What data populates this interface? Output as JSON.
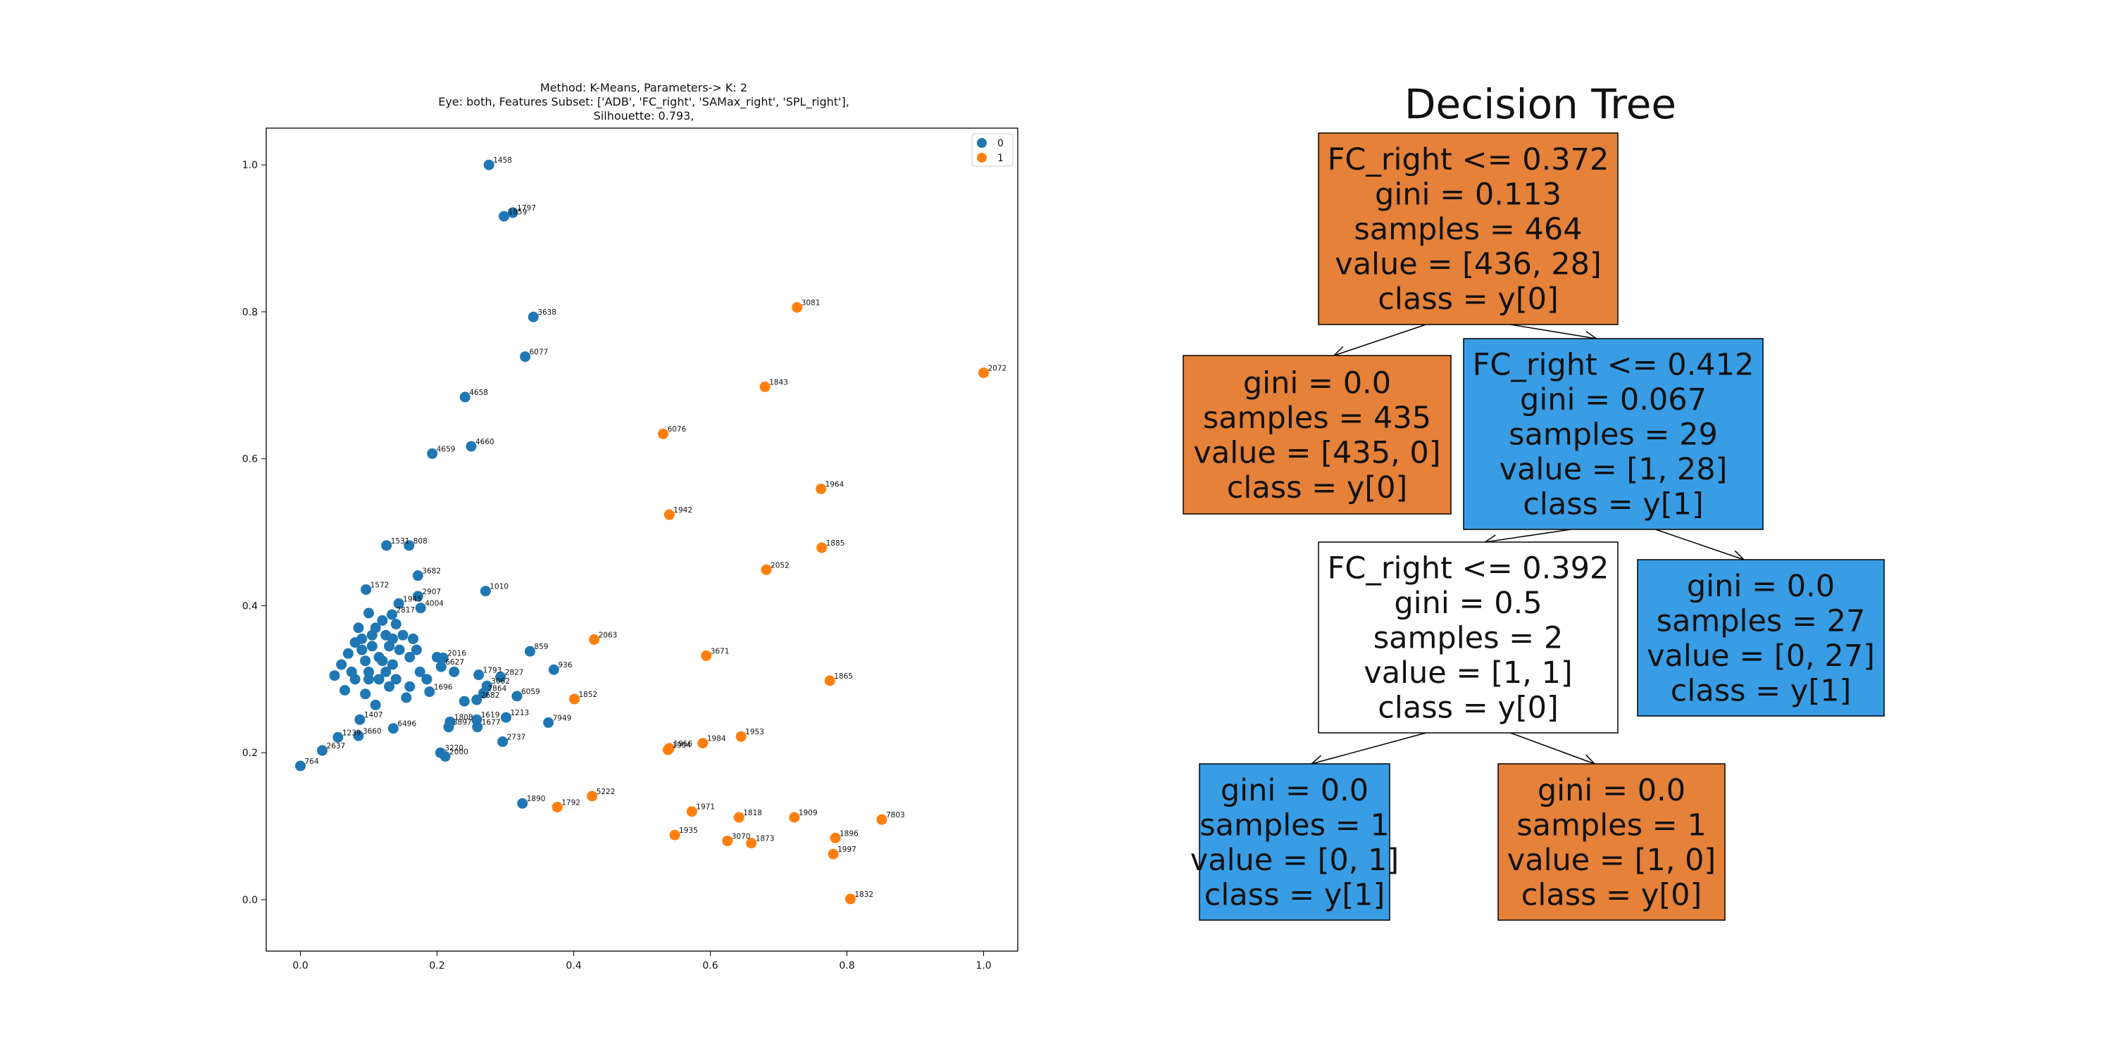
{
  "colors": {
    "cluster_0": "#1f77b4",
    "cluster_1": "#ff7f0e",
    "node_orange": "#e58139",
    "node_blue": "#399de5",
    "node_white": "#ffffff"
  },
  "chart_data": [
    {
      "type": "scatter",
      "title_lines": [
        "Method: K-Means, Parameters-> K: 2",
        "Eye: both, Features Subset: ['ADB', 'FC_right', 'SAMax_right', 'SPL_right'],",
        "Silhouette: 0.793,"
      ],
      "xlim": [
        -0.05,
        1.05
      ],
      "ylim": [
        -0.07,
        1.05
      ],
      "xticks": [
        "0.0",
        "0.2",
        "0.4",
        "0.6",
        "0.8",
        "1.0"
      ],
      "yticks": [
        "0.0",
        "0.2",
        "0.4",
        "0.6",
        "0.8",
        "1.0"
      ],
      "grid": false,
      "legend": {
        "position": "top-right",
        "entries": [
          "0",
          "1"
        ]
      },
      "series": [
        {
          "name": "0",
          "points": [
            {
              "x": 0.276,
              "y": 1.0,
              "label": "1458"
            },
            {
              "x": 0.311,
              "y": 0.935,
              "label": "1797"
            },
            {
              "x": 0.298,
              "y": 0.93,
              "label": "1859"
            },
            {
              "x": 0.341,
              "y": 0.793,
              "label": "3638"
            },
            {
              "x": 0.329,
              "y": 0.739,
              "label": "6077"
            },
            {
              "x": 0.241,
              "y": 0.684,
              "label": "4658"
            },
            {
              "x": 0.25,
              "y": 0.617,
              "label": "4660"
            },
            {
              "x": 0.193,
              "y": 0.607,
              "label": "4659"
            },
            {
              "x": 0.126,
              "y": 0.482,
              "label": "1531"
            },
            {
              "x": 0.159,
              "y": 0.482,
              "label": "808"
            },
            {
              "x": 0.172,
              "y": 0.441,
              "label": "3682"
            },
            {
              "x": 0.271,
              "y": 0.42,
              "label": "1010"
            },
            {
              "x": 0.096,
              "y": 0.422,
              "label": "1572"
            },
            {
              "x": 0.172,
              "y": 0.413,
              "label": "2907"
            },
            {
              "x": 0.176,
              "y": 0.397,
              "label": "4004"
            },
            {
              "x": 0.144,
              "y": 0.403,
              "label": "1945"
            },
            {
              "x": 0.134,
              "y": 0.388,
              "label": "2817"
            },
            {
              "x": 0.336,
              "y": 0.338,
              "label": "859"
            },
            {
              "x": 0.371,
              "y": 0.313,
              "label": "936"
            },
            {
              "x": 0.209,
              "y": 0.329,
              "label": "2016"
            },
            {
              "x": 0.206,
              "y": 0.317,
              "label": "6627"
            },
            {
              "x": 0.261,
              "y": 0.306,
              "label": "1793"
            },
            {
              "x": 0.293,
              "y": 0.303,
              "label": "2827"
            },
            {
              "x": 0.273,
              "y": 0.291,
              "label": "3062"
            },
            {
              "x": 0.268,
              "y": 0.281,
              "label": "2864"
            },
            {
              "x": 0.317,
              "y": 0.277,
              "label": "6059"
            },
            {
              "x": 0.258,
              "y": 0.272,
              "label": "2682"
            },
            {
              "x": 0.189,
              "y": 0.283,
              "label": "1696"
            },
            {
              "x": 0.301,
              "y": 0.248,
              "label": "1213"
            },
            {
              "x": 0.258,
              "y": 0.245,
              "label": "1619"
            },
            {
              "x": 0.259,
              "y": 0.235,
              "label": "1677"
            },
            {
              "x": 0.219,
              "y": 0.242,
              "label": "1808"
            },
            {
              "x": 0.217,
              "y": 0.235,
              "label": "3897"
            },
            {
              "x": 0.363,
              "y": 0.241,
              "label": "7949"
            },
            {
              "x": 0.087,
              "y": 0.245,
              "label": "1407"
            },
            {
              "x": 0.136,
              "y": 0.233,
              "label": "6496"
            },
            {
              "x": 0.085,
              "y": 0.223,
              "label": "3660"
            },
            {
              "x": 0.055,
              "y": 0.221,
              "label": "1239"
            },
            {
              "x": 0.296,
              "y": 0.215,
              "label": "2737"
            },
            {
              "x": 0.205,
              "y": 0.2,
              "label": "3220"
            },
            {
              "x": 0.212,
              "y": 0.195,
              "label": "2000"
            },
            {
              "x": 0.032,
              "y": 0.203,
              "label": "2637"
            },
            {
              "x": 0.0,
              "y": 0.182,
              "label": "764"
            },
            {
              "x": 0.325,
              "y": 0.131,
              "label": "1890"
            },
            {
              "x": 0.07,
              "y": 0.335,
              "label": ""
            },
            {
              "x": 0.09,
              "y": 0.355,
              "label": ""
            },
            {
              "x": 0.1,
              "y": 0.31,
              "label": ""
            },
            {
              "x": 0.11,
              "y": 0.37,
              "label": ""
            },
            {
              "x": 0.12,
              "y": 0.325,
              "label": ""
            },
            {
              "x": 0.13,
              "y": 0.345,
              "label": ""
            },
            {
              "x": 0.08,
              "y": 0.3,
              "label": ""
            },
            {
              "x": 0.14,
              "y": 0.3,
              "label": ""
            },
            {
              "x": 0.15,
              "y": 0.36,
              "label": ""
            },
            {
              "x": 0.16,
              "y": 0.33,
              "label": ""
            },
            {
              "x": 0.06,
              "y": 0.32,
              "label": ""
            },
            {
              "x": 0.095,
              "y": 0.28,
              "label": ""
            },
            {
              "x": 0.105,
              "y": 0.345,
              "label": ""
            },
            {
              "x": 0.115,
              "y": 0.3,
              "label": ""
            },
            {
              "x": 0.125,
              "y": 0.36,
              "label": ""
            },
            {
              "x": 0.135,
              "y": 0.32,
              "label": ""
            },
            {
              "x": 0.145,
              "y": 0.34,
              "label": ""
            },
            {
              "x": 0.085,
              "y": 0.37,
              "label": ""
            },
            {
              "x": 0.075,
              "y": 0.31,
              "label": ""
            },
            {
              "x": 0.165,
              "y": 0.355,
              "label": ""
            },
            {
              "x": 0.175,
              "y": 0.31,
              "label": ""
            },
            {
              "x": 0.185,
              "y": 0.3,
              "label": ""
            },
            {
              "x": 0.1,
              "y": 0.39,
              "label": ""
            },
            {
              "x": 0.12,
              "y": 0.38,
              "label": ""
            },
            {
              "x": 0.095,
              "y": 0.325,
              "label": ""
            },
            {
              "x": 0.13,
              "y": 0.29,
              "label": ""
            },
            {
              "x": 0.11,
              "y": 0.265,
              "label": ""
            },
            {
              "x": 0.155,
              "y": 0.275,
              "label": ""
            },
            {
              "x": 0.05,
              "y": 0.305,
              "label": ""
            },
            {
              "x": 0.14,
              "y": 0.375,
              "label": ""
            },
            {
              "x": 0.2,
              "y": 0.33,
              "label": ""
            },
            {
              "x": 0.225,
              "y": 0.31,
              "label": ""
            },
            {
              "x": 0.24,
              "y": 0.27,
              "label": ""
            },
            {
              "x": 0.065,
              "y": 0.285,
              "label": ""
            },
            {
              "x": 0.105,
              "y": 0.36,
              "label": ""
            },
            {
              "x": 0.16,
              "y": 0.29,
              "label": ""
            },
            {
              "x": 0.125,
              "y": 0.31,
              "label": ""
            },
            {
              "x": 0.09,
              "y": 0.34,
              "label": ""
            },
            {
              "x": 0.115,
              "y": 0.33,
              "label": ""
            },
            {
              "x": 0.135,
              "y": 0.355,
              "label": ""
            },
            {
              "x": 0.17,
              "y": 0.34,
              "label": ""
            },
            {
              "x": 0.1,
              "y": 0.3,
              "label": ""
            },
            {
              "x": 0.08,
              "y": 0.35,
              "label": ""
            }
          ]
        },
        {
          "name": "1",
          "points": [
            {
              "x": 0.727,
              "y": 0.806,
              "label": "3081"
            },
            {
              "x": 1.0,
              "y": 0.717,
              "label": "2072"
            },
            {
              "x": 0.68,
              "y": 0.698,
              "label": "1843"
            },
            {
              "x": 0.531,
              "y": 0.634,
              "label": "6076"
            },
            {
              "x": 0.762,
              "y": 0.559,
              "label": "1964"
            },
            {
              "x": 0.54,
              "y": 0.524,
              "label": "1942"
            },
            {
              "x": 0.763,
              "y": 0.479,
              "label": "1885"
            },
            {
              "x": 0.682,
              "y": 0.449,
              "label": "2052"
            },
            {
              "x": 0.43,
              "y": 0.354,
              "label": "2063"
            },
            {
              "x": 0.594,
              "y": 0.332,
              "label": "3671"
            },
            {
              "x": 0.775,
              "y": 0.298,
              "label": "1865"
            },
            {
              "x": 0.401,
              "y": 0.273,
              "label": "1852"
            },
            {
              "x": 0.645,
              "y": 0.222,
              "label": "1953"
            },
            {
              "x": 0.589,
              "y": 0.213,
              "label": "1984"
            },
            {
              "x": 0.54,
              "y": 0.206,
              "label": "1966"
            },
            {
              "x": 0.538,
              "y": 0.204,
              "label": "1904"
            },
            {
              "x": 0.427,
              "y": 0.141,
              "label": "5222"
            },
            {
              "x": 0.376,
              "y": 0.126,
              "label": "1792"
            },
            {
              "x": 0.573,
              "y": 0.12,
              "label": "1971"
            },
            {
              "x": 0.642,
              "y": 0.112,
              "label": "1818"
            },
            {
              "x": 0.723,
              "y": 0.112,
              "label": "1909"
            },
            {
              "x": 0.851,
              "y": 0.109,
              "label": "7803"
            },
            {
              "x": 0.548,
              "y": 0.088,
              "label": "1935"
            },
            {
              "x": 0.783,
              "y": 0.084,
              "label": "1896"
            },
            {
              "x": 0.625,
              "y": 0.08,
              "label": "3070"
            },
            {
              "x": 0.66,
              "y": 0.077,
              "label": "1873"
            },
            {
              "x": 0.78,
              "y": 0.062,
              "label": "1997"
            },
            {
              "x": 0.805,
              "y": 0.001,
              "label": "1832"
            }
          ]
        }
      ]
    },
    {
      "type": "tree",
      "title": "Decision Tree",
      "nodes": [
        {
          "id": "n0",
          "lines": [
            "FC_right <= 0.372",
            "gini = 0.113",
            "samples = 464",
            "value = [436, 28]",
            "class = y[0]"
          ],
          "fill": "#e58139"
        },
        {
          "id": "n1",
          "lines": [
            "gini = 0.0",
            "samples = 435",
            "value = [435, 0]",
            "class = y[0]"
          ],
          "fill": "#e58139"
        },
        {
          "id": "n2",
          "lines": [
            "FC_right <= 0.412",
            "gini = 0.067",
            "samples = 29",
            "value = [1, 28]",
            "class = y[1]"
          ],
          "fill": "#399de5"
        },
        {
          "id": "n3",
          "lines": [
            "FC_right <= 0.392",
            "gini = 0.5",
            "samples = 2",
            "value = [1, 1]",
            "class = y[0]"
          ],
          "fill": "#ffffff"
        },
        {
          "id": "n4",
          "lines": [
            "gini = 0.0",
            "samples = 27",
            "value = [0, 27]",
            "class = y[1]"
          ],
          "fill": "#399de5"
        },
        {
          "id": "n5",
          "lines": [
            "gini = 0.0",
            "samples = 1",
            "value = [0, 1]",
            "class = y[1]"
          ],
          "fill": "#399de5"
        },
        {
          "id": "n6",
          "lines": [
            "gini = 0.0",
            "samples = 1",
            "value = [1, 0]",
            "class = y[0]"
          ],
          "fill": "#e58139"
        }
      ],
      "edges": [
        [
          "n0",
          "n1"
        ],
        [
          "n0",
          "n2"
        ],
        [
          "n2",
          "n3"
        ],
        [
          "n2",
          "n4"
        ],
        [
          "n3",
          "n5"
        ],
        [
          "n3",
          "n6"
        ]
      ]
    }
  ]
}
